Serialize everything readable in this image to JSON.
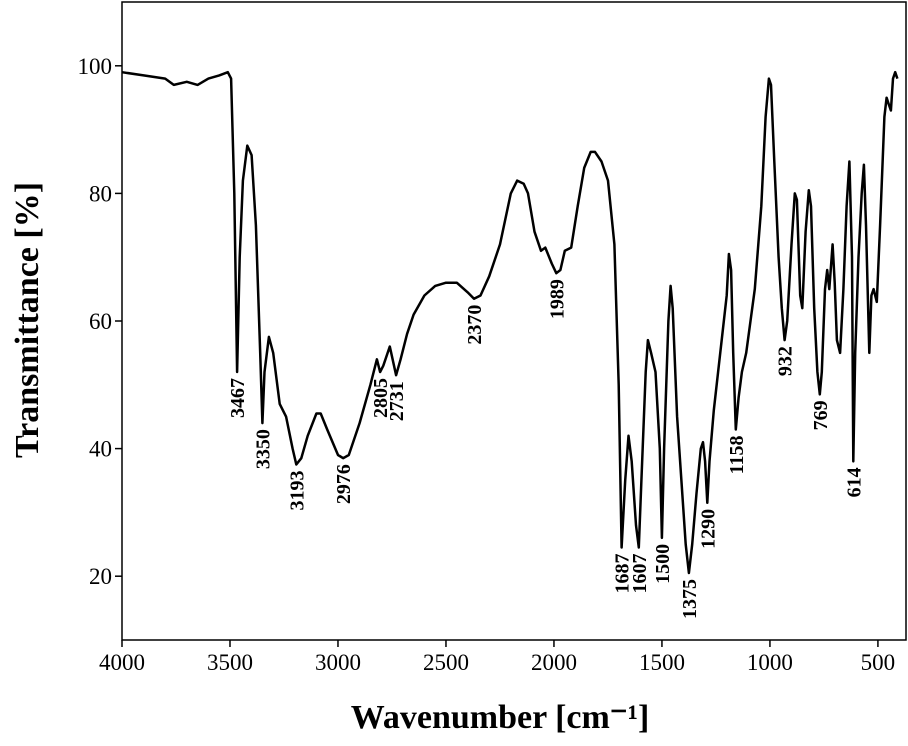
{
  "chart_data": {
    "type": "line",
    "xlabel": "Wavenumber [cm⁻¹]",
    "ylabel": "Transmittance [%]",
    "xlim": [
      4000,
      370
    ],
    "ylim": [
      10,
      110
    ],
    "xticks": [
      4000,
      3500,
      3000,
      2500,
      2000,
      1500,
      1000,
      500
    ],
    "yticks": [
      20,
      40,
      60,
      80,
      100
    ],
    "color": "#000000",
    "x": [
      4000,
      3900,
      3800,
      3760,
      3700,
      3650,
      3600,
      3550,
      3510,
      3495,
      3480,
      3467,
      3455,
      3440,
      3420,
      3400,
      3380,
      3360,
      3350,
      3340,
      3320,
      3300,
      3270,
      3240,
      3210,
      3193,
      3170,
      3140,
      3100,
      3080,
      3050,
      3000,
      2976,
      2950,
      2900,
      2850,
      2820,
      2805,
      2790,
      2760,
      2731,
      2710,
      2680,
      2650,
      2600,
      2550,
      2500,
      2450,
      2400,
      2370,
      2340,
      2300,
      2250,
      2200,
      2170,
      2140,
      2120,
      2090,
      2060,
      2040,
      2010,
      1989,
      1970,
      1950,
      1920,
      1890,
      1860,
      1830,
      1810,
      1780,
      1750,
      1720,
      1700,
      1687,
      1670,
      1655,
      1640,
      1620,
      1607,
      1595,
      1575,
      1565,
      1550,
      1530,
      1510,
      1500,
      1490,
      1470,
      1460,
      1450,
      1430,
      1410,
      1390,
      1375,
      1360,
      1340,
      1320,
      1310,
      1300,
      1290,
      1280,
      1260,
      1240,
      1220,
      1200,
      1190,
      1180,
      1170,
      1158,
      1145,
      1130,
      1110,
      1090,
      1070,
      1040,
      1020,
      1005,
      995,
      980,
      960,
      945,
      932,
      920,
      900,
      885,
      875,
      860,
      850,
      835,
      820,
      810,
      795,
      780,
      769,
      760,
      745,
      735,
      725,
      710,
      700,
      690,
      675,
      660,
      645,
      632,
      620,
      614,
      605,
      590,
      575,
      565,
      555,
      540,
      530,
      520,
      505,
      490,
      470,
      460,
      450,
      440,
      430,
      420,
      410
    ],
    "y": [
      99,
      98.5,
      98,
      97,
      97.5,
      97,
      98,
      98.5,
      99,
      98,
      80,
      52,
      70,
      82,
      87.5,
      86,
      75,
      55,
      44,
      52,
      57.5,
      55,
      47,
      45,
      40,
      37.5,
      38.5,
      42,
      45.5,
      45.5,
      43,
      39,
      38.5,
      39,
      44,
      50,
      54,
      52,
      53,
      56,
      51.5,
      54,
      58,
      61,
      64,
      65.5,
      66,
      66,
      64.5,
      63.5,
      64,
      67,
      72,
      80,
      82,
      81.5,
      80,
      74,
      71,
      71.5,
      69,
      67.5,
      68,
      71,
      71.5,
      78,
      84,
      86.5,
      86.5,
      85,
      82,
      72,
      50,
      24.5,
      35,
      42,
      38,
      28,
      24.5,
      35,
      52,
      57,
      55,
      52,
      40,
      26,
      40,
      60,
      65.5,
      62,
      45,
      35,
      25,
      20.5,
      25,
      33,
      40,
      41,
      38,
      31.5,
      38,
      46,
      52,
      58,
      64,
      70.5,
      68,
      55,
      43,
      48,
      52,
      55,
      60,
      65,
      78,
      92,
      98,
      97,
      85,
      70,
      62,
      57,
      60,
      72,
      80,
      79,
      64,
      62,
      74,
      80.5,
      78,
      62,
      52,
      48.5,
      52,
      65,
      68,
      65,
      72,
      66,
      57,
      55,
      65,
      78,
      85,
      70,
      38,
      55,
      70,
      80,
      84.5,
      75,
      55,
      64,
      65,
      63,
      75,
      92,
      95,
      94,
      93,
      98,
      99,
      98
    ],
    "annotations": [
      {
        "x": 3467,
        "y": 52
      },
      {
        "x": 3350,
        "y": 44
      },
      {
        "x": 3193,
        "y": 37.5
      },
      {
        "x": 2976,
        "y": 38.5
      },
      {
        "x": 2805,
        "y": 52
      },
      {
        "x": 2731,
        "y": 51.5
      },
      {
        "x": 2370,
        "y": 63.5
      },
      {
        "x": 1989,
        "y": 67.5
      },
      {
        "x": 1687,
        "y": 24.5
      },
      {
        "x": 1607,
        "y": 24.5
      },
      {
        "x": 1500,
        "y": 26
      },
      {
        "x": 1375,
        "y": 20.5
      },
      {
        "x": 1290,
        "y": 31.5
      },
      {
        "x": 1158,
        "y": 43
      },
      {
        "x": 932,
        "y": 57
      },
      {
        "x": 769,
        "y": 48.5
      },
      {
        "x": 614,
        "y": 38
      }
    ]
  }
}
